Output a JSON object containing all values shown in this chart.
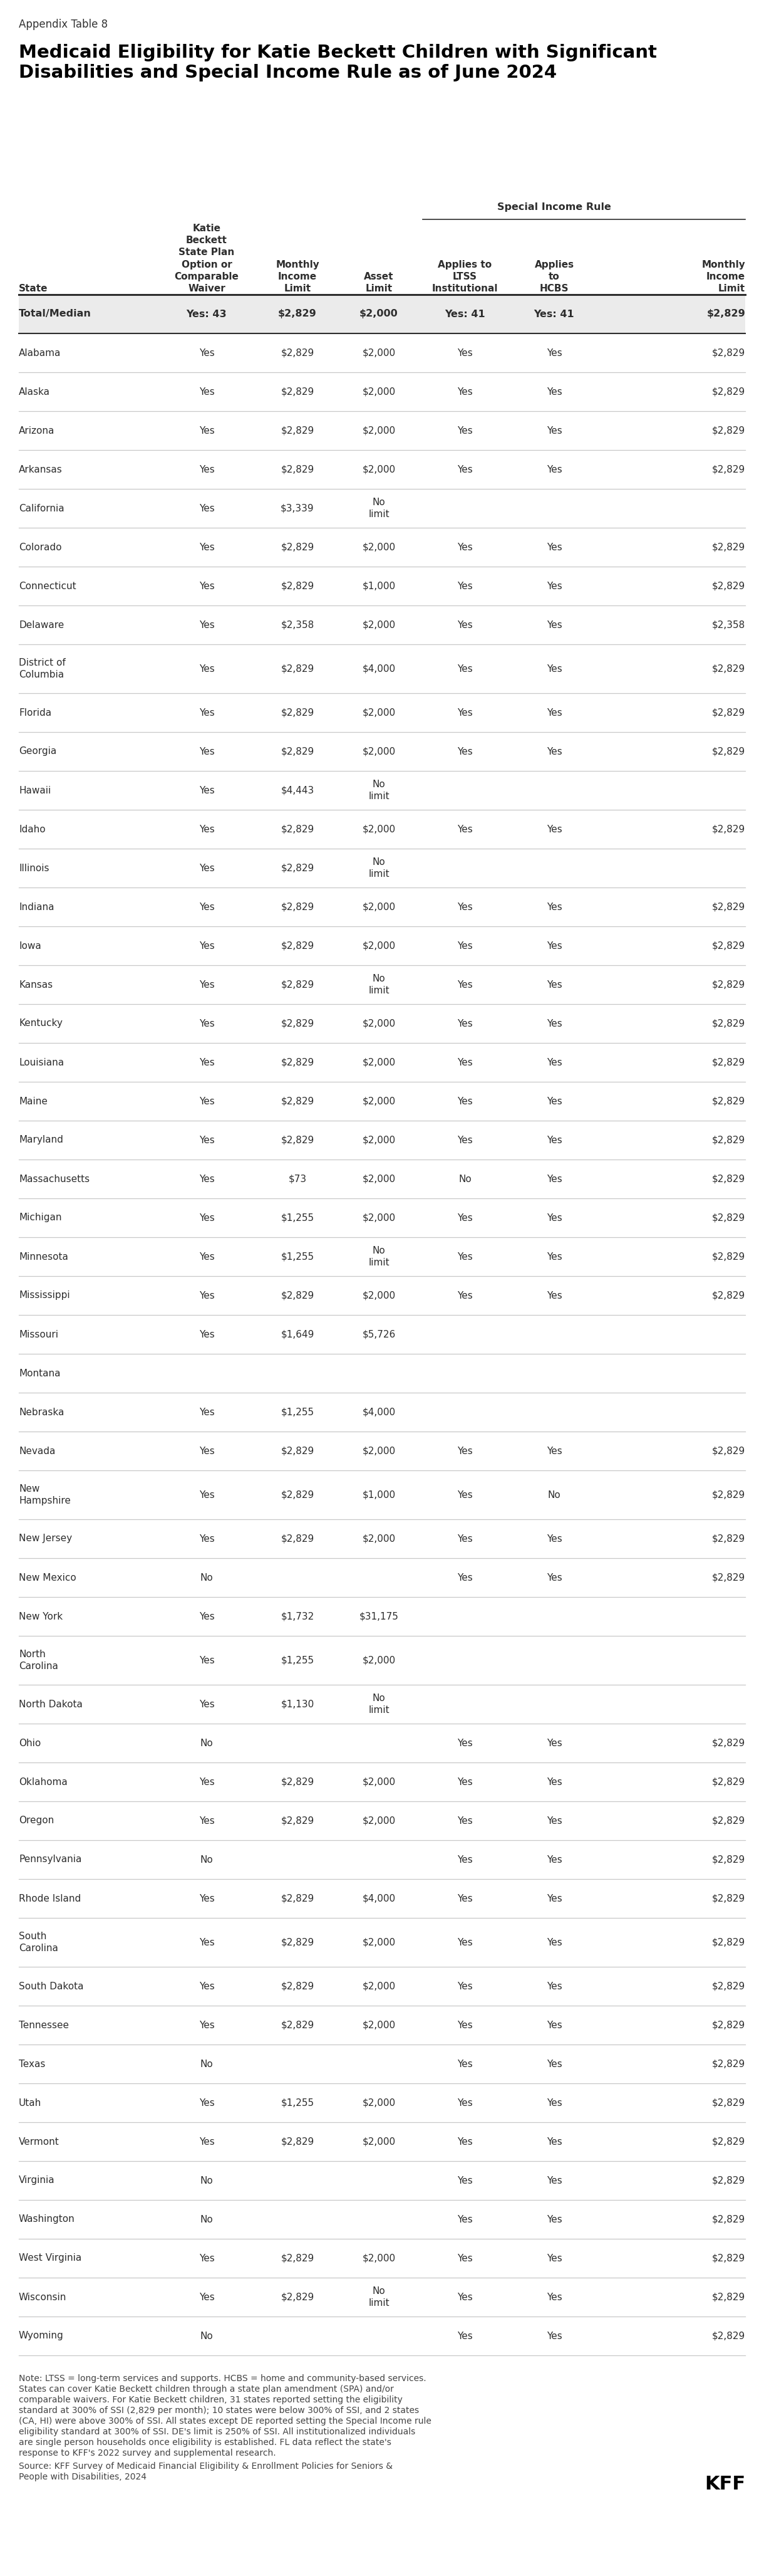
{
  "appendix_label": "Appendix Table 8",
  "title": "Medicaid Eligibility for Katie Beckett Children with Significant\nDisabilities and Special Income Rule as of June 2024",
  "special_income_rule_label": "Special Income Rule",
  "col_headers": [
    "State",
    "Katie\nBeckett\nState Plan\nOption or\nComparable\nWaiver",
    "Monthly\nIncome\nLimit",
    "Asset\nLimit",
    "Applies to\nLTSS\nInstitutional",
    "Applies\nto\nHCBS",
    "Monthly\nIncome\nLimit"
  ],
  "total_row": [
    "Total/Median",
    "Yes: 43",
    "$2,829",
    "$2,000",
    "Yes: 41",
    "Yes: 41",
    "$2,829"
  ],
  "rows": [
    [
      "Alabama",
      "Yes",
      "$2,829",
      "$2,000",
      "Yes",
      "Yes",
      "$2,829"
    ],
    [
      "Alaska",
      "Yes",
      "$2,829",
      "$2,000",
      "Yes",
      "Yes",
      "$2,829"
    ],
    [
      "Arizona",
      "Yes",
      "$2,829",
      "$2,000",
      "Yes",
      "Yes",
      "$2,829"
    ],
    [
      "Arkansas",
      "Yes",
      "$2,829",
      "$2,000",
      "Yes",
      "Yes",
      "$2,829"
    ],
    [
      "California",
      "Yes",
      "$3,339",
      "No\nlimit",
      "",
      "",
      ""
    ],
    [
      "Colorado",
      "Yes",
      "$2,829",
      "$2,000",
      "Yes",
      "Yes",
      "$2,829"
    ],
    [
      "Connecticut",
      "Yes",
      "$2,829",
      "$1,000",
      "Yes",
      "Yes",
      "$2,829"
    ],
    [
      "Delaware",
      "Yes",
      "$2,358",
      "$2,000",
      "Yes",
      "Yes",
      "$2,358"
    ],
    [
      "District of\nColumbia",
      "Yes",
      "$2,829",
      "$4,000",
      "Yes",
      "Yes",
      "$2,829"
    ],
    [
      "Florida",
      "Yes",
      "$2,829",
      "$2,000",
      "Yes",
      "Yes",
      "$2,829"
    ],
    [
      "Georgia",
      "Yes",
      "$2,829",
      "$2,000",
      "Yes",
      "Yes",
      "$2,829"
    ],
    [
      "Hawaii",
      "Yes",
      "$4,443",
      "No\nlimit",
      "",
      "",
      ""
    ],
    [
      "Idaho",
      "Yes",
      "$2,829",
      "$2,000",
      "Yes",
      "Yes",
      "$2,829"
    ],
    [
      "Illinois",
      "Yes",
      "$2,829",
      "No\nlimit",
      "",
      "",
      ""
    ],
    [
      "Indiana",
      "Yes",
      "$2,829",
      "$2,000",
      "Yes",
      "Yes",
      "$2,829"
    ],
    [
      "Iowa",
      "Yes",
      "$2,829",
      "$2,000",
      "Yes",
      "Yes",
      "$2,829"
    ],
    [
      "Kansas",
      "Yes",
      "$2,829",
      "No\nlimit",
      "Yes",
      "Yes",
      "$2,829"
    ],
    [
      "Kentucky",
      "Yes",
      "$2,829",
      "$2,000",
      "Yes",
      "Yes",
      "$2,829"
    ],
    [
      "Louisiana",
      "Yes",
      "$2,829",
      "$2,000",
      "Yes",
      "Yes",
      "$2,829"
    ],
    [
      "Maine",
      "Yes",
      "$2,829",
      "$2,000",
      "Yes",
      "Yes",
      "$2,829"
    ],
    [
      "Maryland",
      "Yes",
      "$2,829",
      "$2,000",
      "Yes",
      "Yes",
      "$2,829"
    ],
    [
      "Massachusetts",
      "Yes",
      "$73",
      "$2,000",
      "No",
      "Yes",
      "$2,829"
    ],
    [
      "Michigan",
      "Yes",
      "$1,255",
      "$2,000",
      "Yes",
      "Yes",
      "$2,829"
    ],
    [
      "Minnesota",
      "Yes",
      "$1,255",
      "No\nlimit",
      "Yes",
      "Yes",
      "$2,829"
    ],
    [
      "Mississippi",
      "Yes",
      "$2,829",
      "$2,000",
      "Yes",
      "Yes",
      "$2,829"
    ],
    [
      "Missouri",
      "Yes",
      "$1,649",
      "$5,726",
      "",
      "",
      ""
    ],
    [
      "Montana",
      "",
      "",
      "",
      "",
      "",
      ""
    ],
    [
      "Nebraska",
      "Yes",
      "$1,255",
      "$4,000",
      "",
      "",
      ""
    ],
    [
      "Nevada",
      "Yes",
      "$2,829",
      "$2,000",
      "Yes",
      "Yes",
      "$2,829"
    ],
    [
      "New\nHampshire",
      "Yes",
      "$2,829",
      "$1,000",
      "Yes",
      "No",
      "$2,829"
    ],
    [
      "New Jersey",
      "Yes",
      "$2,829",
      "$2,000",
      "Yes",
      "Yes",
      "$2,829"
    ],
    [
      "New Mexico",
      "No",
      "",
      "",
      "Yes",
      "Yes",
      "$2,829"
    ],
    [
      "New York",
      "Yes",
      "$1,732",
      "$31,175",
      "",
      "",
      ""
    ],
    [
      "North\nCarolina",
      "Yes",
      "$1,255",
      "$2,000",
      "",
      "",
      ""
    ],
    [
      "North Dakota",
      "Yes",
      "$1,130",
      "No\nlimit",
      "",
      "",
      ""
    ],
    [
      "Ohio",
      "No",
      "",
      "",
      "Yes",
      "Yes",
      "$2,829"
    ],
    [
      "Oklahoma",
      "Yes",
      "$2,829",
      "$2,000",
      "Yes",
      "Yes",
      "$2,829"
    ],
    [
      "Oregon",
      "Yes",
      "$2,829",
      "$2,000",
      "Yes",
      "Yes",
      "$2,829"
    ],
    [
      "Pennsylvania",
      "No",
      "",
      "",
      "Yes",
      "Yes",
      "$2,829"
    ],
    [
      "Rhode Island",
      "Yes",
      "$2,829",
      "$4,000",
      "Yes",
      "Yes",
      "$2,829"
    ],
    [
      "South\nCarolina",
      "Yes",
      "$2,829",
      "$2,000",
      "Yes",
      "Yes",
      "$2,829"
    ],
    [
      "South Dakota",
      "Yes",
      "$2,829",
      "$2,000",
      "Yes",
      "Yes",
      "$2,829"
    ],
    [
      "Tennessee",
      "Yes",
      "$2,829",
      "$2,000",
      "Yes",
      "Yes",
      "$2,829"
    ],
    [
      "Texas",
      "No",
      "",
      "",
      "Yes",
      "Yes",
      "$2,829"
    ],
    [
      "Utah",
      "Yes",
      "$1,255",
      "$2,000",
      "Yes",
      "Yes",
      "$2,829"
    ],
    [
      "Vermont",
      "Yes",
      "$2,829",
      "$2,000",
      "Yes",
      "Yes",
      "$2,829"
    ],
    [
      "Virginia",
      "No",
      "",
      "",
      "Yes",
      "Yes",
      "$2,829"
    ],
    [
      "Washington",
      "No",
      "",
      "",
      "Yes",
      "Yes",
      "$2,829"
    ],
    [
      "West Virginia",
      "Yes",
      "$2,829",
      "$2,000",
      "Yes",
      "Yes",
      "$2,829"
    ],
    [
      "Wisconsin",
      "Yes",
      "$2,829",
      "No\nlimit",
      "Yes",
      "Yes",
      "$2,829"
    ],
    [
      "Wyoming",
      "No",
      "",
      "",
      "Yes",
      "Yes",
      "$2,829"
    ]
  ],
  "note_line1": "Note: LTSS = long-term services and supports. HCBS = home and community-based services.",
  "note_line2": "States can cover Katie Beckett children through a state plan amendment (SPA) and/or",
  "note_line3": "comparable waivers. For Katie Beckett children, 31 states reported setting the eligibility",
  "note_line4": "standard at 300% of SSI (2,829 per month); 10 states were below 300% of SSI, and 2 states",
  "note_line5": "(CA, HI) were above 300% of SSI. All states except DE reported setting the Special Income rule",
  "note_line6": "eligibility standard at 300% of SSI. DE's limit is 250% of SSI. All institutionalized individuals",
  "note_line7": "are single person households once eligibility is established. FL data reflect the state's",
  "note_line8": "response to KFF's 2022 survey and supplemental research.",
  "source_line1": "Source: KFF Survey of Medicaid Financial Eligibility & Enrollment Policies for Seniors &",
  "source_line2": "People with Disabilities, 2024",
  "kff_logo_text": "KFF",
  "bg_color": "#ffffff",
  "total_row_bg": "#ebebeb",
  "divider_color": "#c8c8c8",
  "thick_divider_color": "#2d2d2d",
  "text_color": "#2d2d2d",
  "title_color": "#000000",
  "note_color": "#444444",
  "kff_color": "#000000"
}
